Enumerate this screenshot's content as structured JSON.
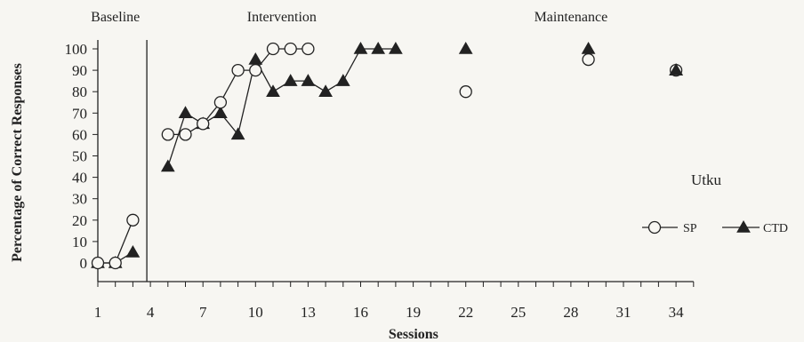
{
  "chart_data": {
    "type": "line",
    "title": "",
    "xlabel": "Sessions",
    "ylabel": "Percentage of Correct Responses",
    "xlim": [
      0,
      35
    ],
    "ylim": [
      0,
      100
    ],
    "x_ticks": [
      1,
      4,
      7,
      10,
      13,
      16,
      19,
      22,
      25,
      28,
      31,
      34
    ],
    "y_ticks": [
      0,
      10,
      20,
      30,
      40,
      50,
      60,
      70,
      80,
      90,
      100
    ],
    "grid": false,
    "participant_label": "Utku",
    "legend_placement": "right",
    "phases": [
      {
        "label": "Baseline",
        "x_start": 1,
        "x_end": 3
      },
      {
        "label": "Intervention",
        "x_start": 5,
        "x_end": 18
      },
      {
        "label": "Maintenance",
        "x_start": 22,
        "x_end": 34
      }
    ],
    "phase_change_lines": [
      4
    ],
    "series": [
      {
        "name": "SP",
        "marker": "open-circle",
        "color": "#222222",
        "segments": [
          {
            "x": [
              1,
              2,
              3
            ],
            "y": [
              0,
              0,
              20
            ]
          },
          {
            "x": [
              5,
              6,
              7,
              8,
              9,
              10,
              11,
              12,
              13
            ],
            "y": [
              60,
              60,
              65,
              75,
              90,
              90,
              100,
              100,
              100
            ]
          },
          {
            "x": [
              22
            ],
            "y": [
              80
            ]
          },
          {
            "x": [
              29
            ],
            "y": [
              95
            ]
          },
          {
            "x": [
              34
            ],
            "y": [
              90
            ]
          }
        ]
      },
      {
        "name": "CTD",
        "marker": "filled-triangle",
        "color": "#222222",
        "segments": [
          {
            "x": [
              1,
              2,
              3
            ],
            "y": [
              0,
              0,
              5
            ]
          },
          {
            "x": [
              5,
              6,
              7,
              8,
              9,
              10,
              11,
              12,
              13,
              14,
              15,
              16,
              17,
              18
            ],
            "y": [
              45,
              70,
              65,
              70,
              60,
              95,
              80,
              85,
              85,
              80,
              85,
              100,
              100,
              100
            ]
          },
          {
            "x": [
              22
            ],
            "y": [
              100
            ]
          },
          {
            "x": [
              29
            ],
            "y": [
              100
            ]
          },
          {
            "x": [
              34
            ],
            "y": [
              90
            ]
          }
        ]
      }
    ]
  }
}
